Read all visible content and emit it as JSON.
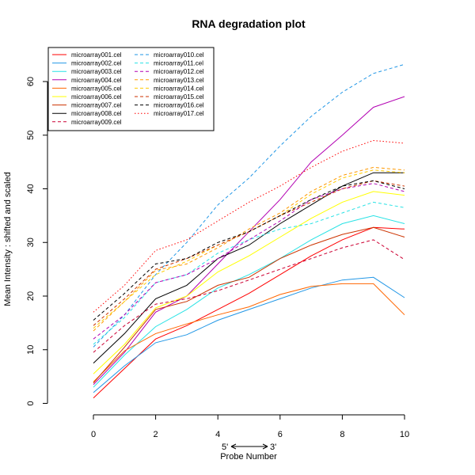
{
  "chart_data": {
    "type": "line",
    "title": "RNA degradation plot",
    "xlabel": "Probe Number",
    "ylabel": "Mean Intensity : shifted and scaled",
    "direction_left": "5'",
    "direction_right": "3'",
    "xlim": [
      0,
      10
    ],
    "ylim": [
      0,
      63
    ],
    "xticks": [
      0,
      2,
      4,
      6,
      8,
      10
    ],
    "yticks": [
      0,
      10,
      20,
      30,
      40,
      50,
      60
    ],
    "x": [
      0,
      1,
      2,
      3,
      4,
      5,
      6,
      7,
      8,
      9,
      10
    ],
    "legend_position": "top-left",
    "series": [
      {
        "name": "microarray001.cel",
        "color": "#ff0000",
        "dash": "solid",
        "values": [
          1.0,
          6.5,
          12.0,
          14.5,
          17.5,
          20.5,
          24.0,
          27.5,
          30.5,
          32.8,
          32.5
        ]
      },
      {
        "name": "microarray002.cel",
        "color": "#2297e6",
        "dash": "solid",
        "values": [
          2.0,
          7.0,
          11.3,
          12.8,
          15.5,
          17.5,
          19.5,
          21.5,
          23.0,
          23.5,
          19.7
        ]
      },
      {
        "name": "microarray003.cel",
        "color": "#28e2e5",
        "dash": "solid",
        "values": [
          3.0,
          9.0,
          14.3,
          17.5,
          21.5,
          24.0,
          27.0,
          30.5,
          33.5,
          35.0,
          33.5
        ]
      },
      {
        "name": "microarray004.cel",
        "color": "#b200b2",
        "dash": "solid",
        "values": [
          3.5,
          9.5,
          17.0,
          20.0,
          26.0,
          32.0,
          38.0,
          45.0,
          50.0,
          55.2,
          57.2
        ]
      },
      {
        "name": "microarray005.cel",
        "color": "#ff6600",
        "dash": "solid",
        "values": [
          4.0,
          9.8,
          13.0,
          14.8,
          16.5,
          18.0,
          20.3,
          21.8,
          22.3,
          22.3,
          16.5
        ]
      },
      {
        "name": "microarray006.cel",
        "color": "#ffff00",
        "dash": "solid",
        "values": [
          5.5,
          11.0,
          17.8,
          20.0,
          24.5,
          27.5,
          31.0,
          34.5,
          37.5,
          39.5,
          38.8
        ]
      },
      {
        "name": "microarray007.cel",
        "color": "#cc3300",
        "dash": "solid",
        "values": [
          3.8,
          10.5,
          17.5,
          19.0,
          22.0,
          23.5,
          27.0,
          29.5,
          31.5,
          32.8,
          31.0
        ]
      },
      {
        "name": "microarray008.cel",
        "color": "#000000",
        "dash": "solid",
        "values": [
          7.5,
          13.0,
          19.5,
          22.0,
          27.0,
          29.5,
          33.5,
          37.0,
          40.5,
          43.0,
          43.0
        ]
      },
      {
        "name": "microarray009.cel",
        "color": "#cc0033",
        "dash": "dashed",
        "values": [
          9.5,
          14.5,
          18.5,
          19.5,
          21.0,
          23.0,
          25.0,
          27.0,
          29.0,
          30.5,
          26.8
        ]
      },
      {
        "name": "microarray010.cel",
        "color": "#2297e6",
        "dash": "dashed",
        "values": [
          10.5,
          16.5,
          24.0,
          30.0,
          37.0,
          42.0,
          48.0,
          53.5,
          58.0,
          61.5,
          63.2
        ]
      },
      {
        "name": "microarray011.cel",
        "color": "#28e2e5",
        "dash": "dashed",
        "values": [
          11.0,
          16.0,
          22.5,
          24.0,
          28.0,
          30.5,
          32.5,
          33.5,
          35.5,
          37.5,
          36.5
        ]
      },
      {
        "name": "microarray012.cel",
        "color": "#b200b2",
        "dash": "dashed",
        "values": [
          12.0,
          16.5,
          22.5,
          24.0,
          27.0,
          30.5,
          34.0,
          38.0,
          40.0,
          41.0,
          39.5
        ]
      },
      {
        "name": "microarray013.cel",
        "color": "#ff9900",
        "dash": "dashed",
        "values": [
          13.5,
          19.0,
          24.8,
          26.0,
          29.0,
          32.5,
          35.5,
          39.5,
          42.5,
          44.0,
          43.5
        ]
      },
      {
        "name": "microarray014.cel",
        "color": "#ffcc00",
        "dash": "dashed",
        "values": [
          14.0,
          19.0,
          24.0,
          26.5,
          29.5,
          32.0,
          35.0,
          39.0,
          42.0,
          43.5,
          43.0
        ]
      },
      {
        "name": "microarray015.cel",
        "color": "#cc3300",
        "dash": "dashed",
        "values": [
          14.5,
          19.5,
          25.0,
          27.0,
          29.5,
          32.0,
          35.0,
          37.5,
          40.0,
          41.5,
          40.5
        ]
      },
      {
        "name": "microarray016.cel",
        "color": "#000000",
        "dash": "dashed",
        "values": [
          15.5,
          20.5,
          26.0,
          27.0,
          30.0,
          32.0,
          35.0,
          38.0,
          40.5,
          41.5,
          40.0
        ]
      },
      {
        "name": "microarray017.cel",
        "color": "#ff0000",
        "dash": "dotted",
        "values": [
          17.0,
          22.0,
          28.5,
          30.5,
          34.0,
          37.5,
          40.5,
          44.0,
          47.0,
          49.0,
          48.5
        ]
      }
    ]
  }
}
